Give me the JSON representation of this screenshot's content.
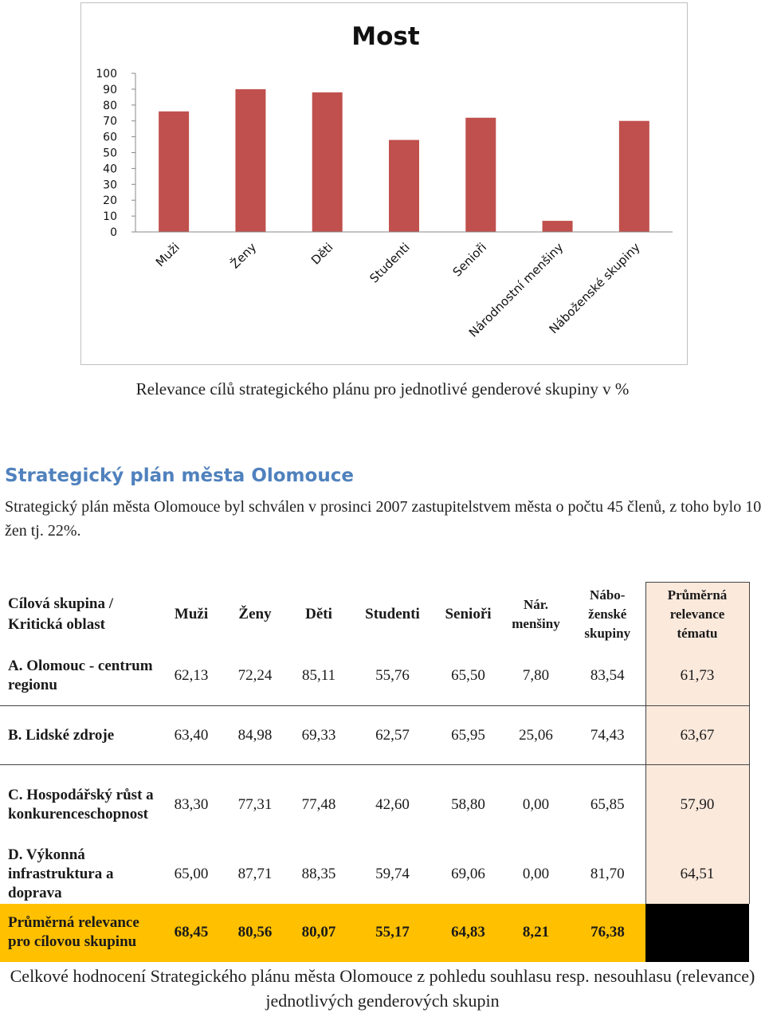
{
  "chart_data": {
    "type": "bar",
    "title": "Most",
    "categories": [
      "Muži",
      "Ženy",
      "Děti",
      "Studenti",
      "Senioři",
      "Národnostní menšiny",
      "Náboženské skupiny"
    ],
    "values": [
      76,
      90,
      88,
      58,
      72,
      7,
      70
    ],
    "yticks": [
      "0",
      "10",
      "20",
      "30",
      "40",
      "50",
      "60",
      "70",
      "80",
      "90",
      "100"
    ],
    "ylim": [
      0,
      100
    ],
    "bar_color": "#c0504d",
    "xlabel": "",
    "ylabel": "",
    "grid": false,
    "legend": false
  },
  "chart_caption": "Relevance cílů strategického plánu pro jednotlivé genderové skupiny v %",
  "section": {
    "heading": "Strategický plán města Olomouce",
    "body": "Strategický plán města Olomouce byl schválen v prosinci 2007 zastupitelstvem města o počtu 45 členů, z toho bylo 10 žen tj. 22%."
  },
  "table": {
    "header": {
      "label_line1": "Cílová skupina /",
      "label_line2": "Kritická oblast",
      "col_muzi": "Muži",
      "col_zeny": "Ženy",
      "col_deti": "Děti",
      "col_studenti": "Studenti",
      "col_seniori": "Senioři",
      "col_nar_1": "Nár.",
      "col_nar_2": "menšiny",
      "col_nab_1": "Nábo-",
      "col_nab_2": "ženské",
      "col_nab_3": "skupiny",
      "col_avg_1": "Průměrná",
      "col_avg_2": "relevance",
      "col_avg_3": "tématu"
    },
    "rows": [
      {
        "label": "A. Olomouc - centrum regionu",
        "values": [
          "62,13",
          "72,24",
          "85,11",
          "55,76",
          "65,50",
          "7,80",
          "83,54"
        ],
        "avg": "61,73"
      },
      {
        "label": "B. Lidské zdroje",
        "values": [
          "63,40",
          "84,98",
          "69,33",
          "62,57",
          "65,95",
          "25,06",
          "74,43"
        ],
        "avg": "63,67"
      },
      {
        "label": "C. Hospodářský růst a konkurenceschopnost",
        "values": [
          "83,30",
          "77,31",
          "77,48",
          "42,60",
          "58,80",
          "0,00",
          "65,85"
        ],
        "avg": "57,90"
      },
      {
        "label": "D. Výkonná infrastruktura a doprava",
        "values": [
          "65,00",
          "87,71",
          "88,35",
          "59,74",
          "69,06",
          "0,00",
          "81,70"
        ],
        "avg": "64,51"
      }
    ],
    "avg_row": {
      "label": "Průměrná relevance pro cílovou skupinu",
      "values": [
        "68,45",
        "80,56",
        "80,07",
        "55,17",
        "64,83",
        "8,21",
        "76,38"
      ]
    },
    "colors": {
      "avg_row": "#ffc000",
      "avg_col": "#fbe9dc",
      "black_cell": "#000000"
    }
  },
  "footer_caption": "Celkové hodnocení Strategického plánu města Olomouce z pohledu souhlasu resp. nesouhlasu (relevance) jednotlivých genderových skupin"
}
